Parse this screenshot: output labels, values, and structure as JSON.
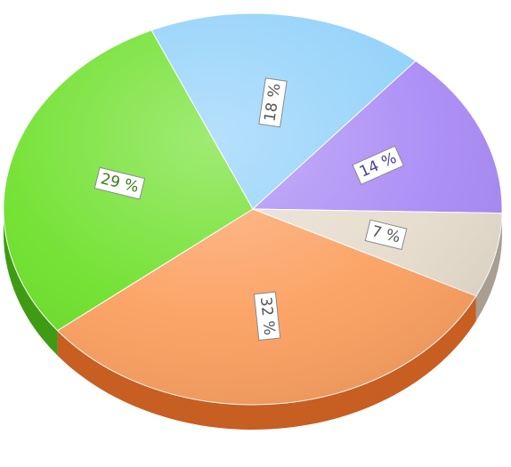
{
  "chart_data": {
    "type": "pie",
    "style": "3d",
    "title": "",
    "slices": [
      {
        "label": "18 %",
        "value": 18,
        "color": "#8fd0fa",
        "side": "#5a9fcf",
        "text_color": "#555555"
      },
      {
        "label": "14 %",
        "value": 14,
        "color": "#a98af5",
        "side": "#5b4bb8",
        "text_color": "#4a3f9a"
      },
      {
        "label": "7 %",
        "value": 7,
        "color": "#e6dccd",
        "side": "#a89f92",
        "text_color": "#555555"
      },
      {
        "label": "32 %",
        "value": 32,
        "color": "#fca061",
        "side": "#c75e22",
        "text_color": "#555555"
      },
      {
        "label": "29 %",
        "value": 29,
        "color": "#6de02a",
        "side": "#3f9b14",
        "text_color": "#3e7a1a"
      }
    ]
  }
}
